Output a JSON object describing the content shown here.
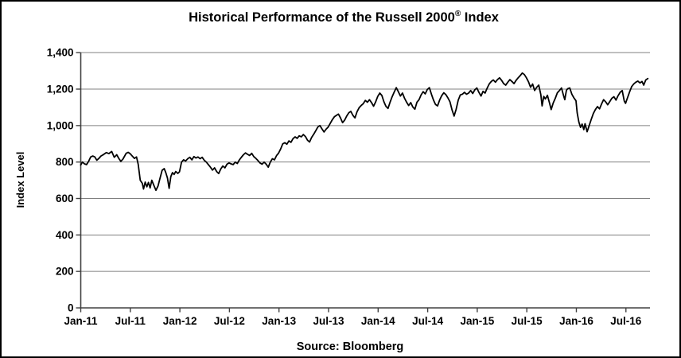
{
  "header": {
    "title_main": "Historical Performance of the Russell 2000",
    "title_sup": "®",
    "title_suffix": " Index"
  },
  "footer": {
    "source": "Source: Bloomberg"
  },
  "chart_data": {
    "type": "line",
    "title": "Historical Performance of the Russell 2000® Index",
    "xlabel": "",
    "ylabel": "Index Level",
    "source": "Source: Bloomberg",
    "ylim": [
      0,
      1400
    ],
    "y_ticks": [
      0,
      200,
      400,
      600,
      800,
      1000,
      1200,
      1400
    ],
    "y_tick_labels": [
      "0",
      "200",
      "400",
      "600",
      "800",
      "1,000",
      "1,200",
      "1,400"
    ],
    "x_tick_labels": [
      "Jan-11",
      "Jul-11",
      "Jan-12",
      "Jul-12",
      "Jan-13",
      "Jul-13",
      "Jan-14",
      "Jul-14",
      "Jan-15",
      "Jul-15",
      "Jan-16",
      "Jul-16"
    ],
    "x_unit": "months since Jan-2011, ticks every 6 months, data ends late Sep-2016",
    "grid": true,
    "legend": false,
    "colors": {
      "line": "#000000",
      "grid": "#808080",
      "axis": "#404040",
      "text": "#000000",
      "background": "#ffffff",
      "border": "#000000"
    },
    "series": [
      {
        "name": "Russell 2000 Index Level",
        "points": [
          [
            0,
            784
          ],
          [
            0.2,
            800
          ],
          [
            0.45,
            790
          ],
          [
            0.7,
            786
          ],
          [
            0.95,
            804
          ],
          [
            1.2,
            828
          ],
          [
            1.45,
            833
          ],
          [
            1.7,
            828
          ],
          [
            1.95,
            810
          ],
          [
            2.2,
            820
          ],
          [
            2.45,
            833
          ],
          [
            2.75,
            841
          ],
          [
            3.1,
            852
          ],
          [
            3.4,
            846
          ],
          [
            3.75,
            858
          ],
          [
            4.05,
            826
          ],
          [
            4.35,
            840
          ],
          [
            4.6,
            820
          ],
          [
            4.85,
            804
          ],
          [
            5.1,
            816
          ],
          [
            5.5,
            848
          ],
          [
            5.75,
            853
          ],
          [
            6.0,
            845
          ],
          [
            6.25,
            832
          ],
          [
            6.5,
            820
          ],
          [
            6.75,
            828
          ],
          [
            6.95,
            788
          ],
          [
            7.2,
            700
          ],
          [
            7.45,
            683
          ],
          [
            7.6,
            652
          ],
          [
            7.8,
            690
          ],
          [
            8.0,
            664
          ],
          [
            8.2,
            688
          ],
          [
            8.4,
            658
          ],
          [
            8.6,
            700
          ],
          [
            8.85,
            672
          ],
          [
            9.1,
            645
          ],
          [
            9.35,
            668
          ],
          [
            9.6,
            712
          ],
          [
            9.85,
            755
          ],
          [
            10.1,
            764
          ],
          [
            10.3,
            742
          ],
          [
            10.5,
            712
          ],
          [
            10.7,
            656
          ],
          [
            10.9,
            720
          ],
          [
            11.1,
            742
          ],
          [
            11.3,
            732
          ],
          [
            11.5,
            748
          ],
          [
            11.75,
            738
          ],
          [
            11.95,
            746
          ],
          [
            12.2,
            800
          ],
          [
            12.45,
            812
          ],
          [
            12.7,
            806
          ],
          [
            12.95,
            818
          ],
          [
            13.2,
            826
          ],
          [
            13.45,
            812
          ],
          [
            13.7,
            830
          ],
          [
            13.95,
            822
          ],
          [
            14.2,
            828
          ],
          [
            14.45,
            818
          ],
          [
            14.7,
            826
          ],
          [
            14.95,
            810
          ],
          [
            15.2,
            800
          ],
          [
            15.45,
            786
          ],
          [
            15.7,
            772
          ],
          [
            15.95,
            756
          ],
          [
            16.2,
            768
          ],
          [
            16.45,
            748
          ],
          [
            16.7,
            737
          ],
          [
            16.95,
            762
          ],
          [
            17.2,
            778
          ],
          [
            17.45,
            768
          ],
          [
            17.7,
            788
          ],
          [
            17.95,
            795
          ],
          [
            18.2,
            790
          ],
          [
            18.45,
            786
          ],
          [
            18.7,
            800
          ],
          [
            18.95,
            792
          ],
          [
            19.2,
            812
          ],
          [
            19.45,
            826
          ],
          [
            19.7,
            840
          ],
          [
            19.95,
            850
          ],
          [
            20.2,
            842
          ],
          [
            20.45,
            836
          ],
          [
            20.7,
            848
          ],
          [
            20.95,
            830
          ],
          [
            21.2,
            820
          ],
          [
            21.45,
            808
          ],
          [
            21.7,
            795
          ],
          [
            21.95,
            788
          ],
          [
            22.2,
            800
          ],
          [
            22.45,
            788
          ],
          [
            22.7,
            772
          ],
          [
            22.95,
            800
          ],
          [
            23.2,
            818
          ],
          [
            23.45,
            812
          ],
          [
            23.7,
            835
          ],
          [
            23.95,
            849
          ],
          [
            24.2,
            872
          ],
          [
            24.45,
            900
          ],
          [
            24.7,
            906
          ],
          [
            24.95,
            898
          ],
          [
            25.2,
            916
          ],
          [
            25.45,
            908
          ],
          [
            25.7,
            928
          ],
          [
            25.95,
            938
          ],
          [
            26.2,
            930
          ],
          [
            26.45,
            944
          ],
          [
            26.7,
            938
          ],
          [
            26.95,
            951
          ],
          [
            27.2,
            940
          ],
          [
            27.45,
            920
          ],
          [
            27.7,
            910
          ],
          [
            27.95,
            935
          ],
          [
            28.2,
            952
          ],
          [
            28.45,
            972
          ],
          [
            28.7,
            992
          ],
          [
            28.95,
            1000
          ],
          [
            29.2,
            982
          ],
          [
            29.45,
            965
          ],
          [
            29.7,
            980
          ],
          [
            29.95,
            992
          ],
          [
            30.2,
            1012
          ],
          [
            30.45,
            1032
          ],
          [
            30.7,
            1048
          ],
          [
            30.95,
            1056
          ],
          [
            31.2,
            1063
          ],
          [
            31.45,
            1042
          ],
          [
            31.7,
            1016
          ],
          [
            31.95,
            1030
          ],
          [
            32.2,
            1052
          ],
          [
            32.45,
            1070
          ],
          [
            32.7,
            1078
          ],
          [
            32.95,
            1056
          ],
          [
            33.2,
            1042
          ],
          [
            33.45,
            1076
          ],
          [
            33.7,
            1098
          ],
          [
            33.95,
            1110
          ],
          [
            34.2,
            1120
          ],
          [
            34.45,
            1138
          ],
          [
            34.7,
            1128
          ],
          [
            34.95,
            1142
          ],
          [
            35.2,
            1126
          ],
          [
            35.45,
            1106
          ],
          [
            35.7,
            1130
          ],
          [
            35.95,
            1160
          ],
          [
            36.2,
            1178
          ],
          [
            36.45,
            1165
          ],
          [
            36.7,
            1130
          ],
          [
            36.95,
            1105
          ],
          [
            37.2,
            1094
          ],
          [
            37.45,
            1128
          ],
          [
            37.7,
            1158
          ],
          [
            37.95,
            1184
          ],
          [
            38.2,
            1208
          ],
          [
            38.45,
            1186
          ],
          [
            38.7,
            1162
          ],
          [
            38.95,
            1178
          ],
          [
            39.2,
            1150
          ],
          [
            39.45,
            1128
          ],
          [
            39.7,
            1110
          ],
          [
            39.95,
            1126
          ],
          [
            40.2,
            1102
          ],
          [
            40.45,
            1090
          ],
          [
            40.7,
            1128
          ],
          [
            40.95,
            1142
          ],
          [
            41.2,
            1168
          ],
          [
            41.45,
            1186
          ],
          [
            41.7,
            1174
          ],
          [
            41.95,
            1198
          ],
          [
            42.2,
            1208
          ],
          [
            42.45,
            1172
          ],
          [
            42.7,
            1140
          ],
          [
            42.95,
            1116
          ],
          [
            43.2,
            1108
          ],
          [
            43.45,
            1140
          ],
          [
            43.7,
            1164
          ],
          [
            43.95,
            1180
          ],
          [
            44.2,
            1170
          ],
          [
            44.45,
            1152
          ],
          [
            44.7,
            1130
          ],
          [
            44.95,
            1086
          ],
          [
            45.2,
            1052
          ],
          [
            45.45,
            1090
          ],
          [
            45.7,
            1140
          ],
          [
            45.95,
            1168
          ],
          [
            46.2,
            1172
          ],
          [
            46.45,
            1182
          ],
          [
            46.7,
            1172
          ],
          [
            46.95,
            1178
          ],
          [
            47.2,
            1192
          ],
          [
            47.45,
            1176
          ],
          [
            47.7,
            1196
          ],
          [
            47.95,
            1206
          ],
          [
            48.2,
            1182
          ],
          [
            48.45,
            1162
          ],
          [
            48.7,
            1188
          ],
          [
            48.95,
            1178
          ],
          [
            49.2,
            1205
          ],
          [
            49.45,
            1228
          ],
          [
            49.7,
            1242
          ],
          [
            49.95,
            1250
          ],
          [
            50.2,
            1238
          ],
          [
            50.45,
            1252
          ],
          [
            50.7,
            1262
          ],
          [
            50.95,
            1248
          ],
          [
            51.2,
            1230
          ],
          [
            51.45,
            1222
          ],
          [
            51.7,
            1238
          ],
          [
            51.95,
            1252
          ],
          [
            52.2,
            1242
          ],
          [
            52.45,
            1230
          ],
          [
            52.7,
            1248
          ],
          [
            52.95,
            1262
          ],
          [
            53.2,
            1274
          ],
          [
            53.45,
            1288
          ],
          [
            53.7,
            1280
          ],
          [
            53.95,
            1262
          ],
          [
            54.2,
            1240
          ],
          [
            54.45,
            1210
          ],
          [
            54.7,
            1228
          ],
          [
            54.95,
            1192
          ],
          [
            55.2,
            1210
          ],
          [
            55.45,
            1222
          ],
          [
            55.7,
            1170
          ],
          [
            55.85,
            1108
          ],
          [
            56.05,
            1160
          ],
          [
            56.25,
            1146
          ],
          [
            56.5,
            1166
          ],
          [
            56.75,
            1124
          ],
          [
            56.95,
            1088
          ],
          [
            57.2,
            1124
          ],
          [
            57.45,
            1150
          ],
          [
            57.7,
            1180
          ],
          [
            57.95,
            1192
          ],
          [
            58.2,
            1206
          ],
          [
            58.45,
            1164
          ],
          [
            58.6,
            1142
          ],
          [
            58.8,
            1194
          ],
          [
            58.95,
            1202
          ],
          [
            59.2,
            1206
          ],
          [
            59.45,
            1172
          ],
          [
            59.7,
            1152
          ],
          [
            59.95,
            1136
          ],
          [
            60.1,
            1070
          ],
          [
            60.3,
            1020
          ],
          [
            60.5,
            990
          ],
          [
            60.7,
            1008
          ],
          [
            60.9,
            978
          ],
          [
            61.05,
            1010
          ],
          [
            61.3,
            966
          ],
          [
            61.55,
            1000
          ],
          [
            61.8,
            1034
          ],
          [
            62.05,
            1066
          ],
          [
            62.3,
            1088
          ],
          [
            62.55,
            1104
          ],
          [
            62.8,
            1092
          ],
          [
            63.05,
            1118
          ],
          [
            63.3,
            1142
          ],
          [
            63.55,
            1130
          ],
          [
            63.8,
            1114
          ],
          [
            64.05,
            1132
          ],
          [
            64.3,
            1150
          ],
          [
            64.55,
            1158
          ],
          [
            64.8,
            1140
          ],
          [
            65.05,
            1164
          ],
          [
            65.3,
            1182
          ],
          [
            65.55,
            1192
          ],
          [
            65.8,
            1134
          ],
          [
            65.95,
            1122
          ],
          [
            66.2,
            1154
          ],
          [
            66.45,
            1186
          ],
          [
            66.7,
            1214
          ],
          [
            66.95,
            1228
          ],
          [
            67.2,
            1238
          ],
          [
            67.45,
            1244
          ],
          [
            67.7,
            1234
          ],
          [
            67.95,
            1242
          ],
          [
            68.15,
            1222
          ],
          [
            68.4,
            1250
          ],
          [
            68.65,
            1258
          ]
        ]
      }
    ]
  }
}
